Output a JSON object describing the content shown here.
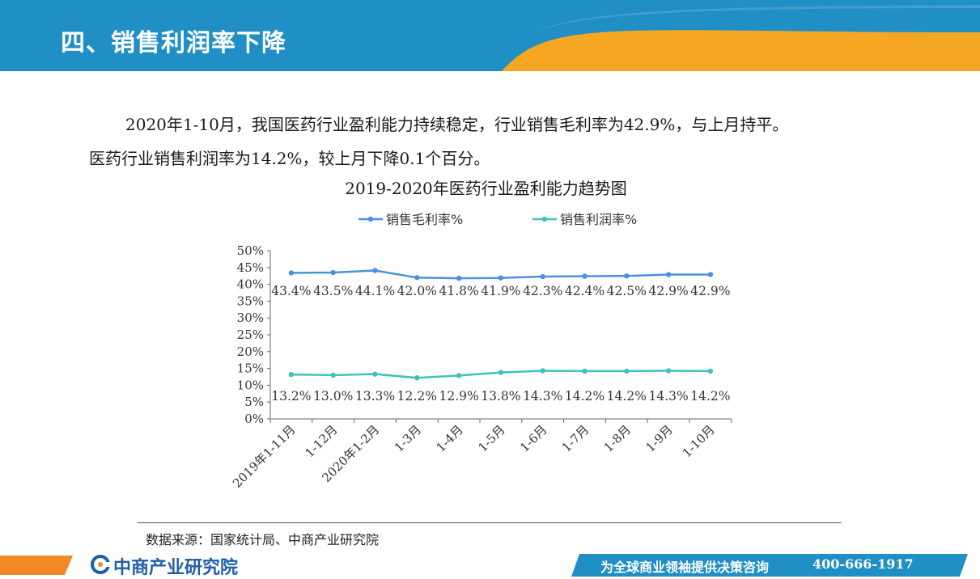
{
  "header": {
    "title": "四、销售利润率下降"
  },
  "body": {
    "para1": "2020年1-10月，我国医药行业盈利能力持续稳定，行业销售毛利率为42.9%，与上月持平。",
    "para2": "医药行业销售利润率为14.2%，较上月下降0.1个百分。"
  },
  "source": "数据来源：国家统计局、中商产业研究院",
  "footer": {
    "logo": "中商产业研究院",
    "slogan": "为全球商业领袖提供决策咨询",
    "phone": "400-666-1917"
  },
  "colors": {
    "header_blue": "#1f8fc6",
    "accent_orange": "#f5a623",
    "series1": "#4a90e2",
    "series2": "#3fc1c0"
  },
  "chart_data": {
    "type": "line",
    "title": "2019-2020年医药行业盈利能力趋势图",
    "categories": [
      "2019年1-11月",
      "1-12月",
      "2020年1-2月",
      "1-3月",
      "1-4月",
      "1-5月",
      "1-6月",
      "1-7月",
      "1-8月",
      "1-9月",
      "1-10月"
    ],
    "series": [
      {
        "name": "销售毛利率%",
        "values": [
          43.4,
          43.5,
          44.1,
          42.0,
          41.8,
          41.9,
          42.3,
          42.4,
          42.5,
          42.9,
          42.9
        ],
        "labels": [
          "43.4%",
          "43.5%",
          "44.1%",
          "42.0%",
          "41.8%",
          "41.9%",
          "42.3%",
          "42.4%",
          "42.5%",
          "42.9%",
          "42.9%"
        ]
      },
      {
        "name": "销售利润率%",
        "values": [
          13.2,
          13.0,
          13.3,
          12.2,
          12.9,
          13.8,
          14.3,
          14.2,
          14.2,
          14.3,
          14.2
        ],
        "labels": [
          "13.2%",
          "13.0%",
          "13.3%",
          "12.2%",
          "12.9%",
          "13.8%",
          "14.3%",
          "14.2%",
          "14.2%",
          "14.3%",
          "14.2%"
        ]
      }
    ],
    "yticks": [
      "0%",
      "5%",
      "10%",
      "15%",
      "20%",
      "25%",
      "30%",
      "35%",
      "40%",
      "45%",
      "50%"
    ],
    "ylim": [
      0,
      50
    ],
    "legend": "top",
    "grid": false
  }
}
